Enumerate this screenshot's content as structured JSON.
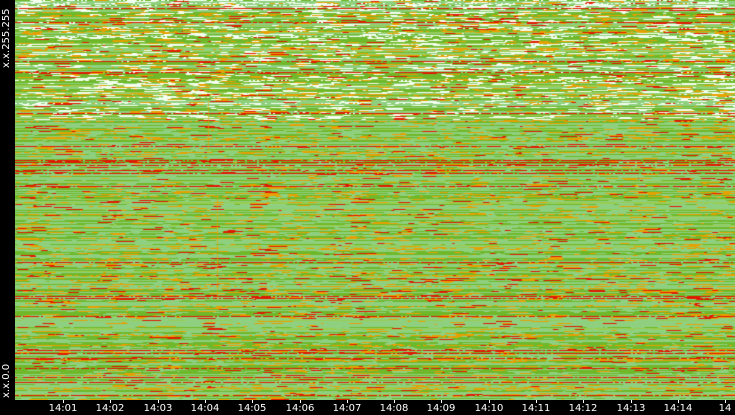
{
  "chart_data": {
    "type": "heatmap",
    "title": "",
    "xlabel": "",
    "ylabel": "",
    "y_axis_labels": {
      "top": "x.x.255.255",
      "bottom": "x.x.0.0"
    },
    "x_tick_labels": [
      "14:01",
      "14:02",
      "14:03",
      "14:04",
      "14:05",
      "14:06",
      "14:07",
      "14:08",
      "14:09",
      "14:10",
      "14:11",
      "14:12",
      "14:13",
      "14:14",
      "14"
    ],
    "colors": {
      "background": "#000000",
      "low": "#8fd080",
      "mid": "#6fb82a",
      "high_orange": "#e8a000",
      "high_red": "#e01800",
      "peak_white": "#f4fff0",
      "text": "#ffffff"
    }
  }
}
